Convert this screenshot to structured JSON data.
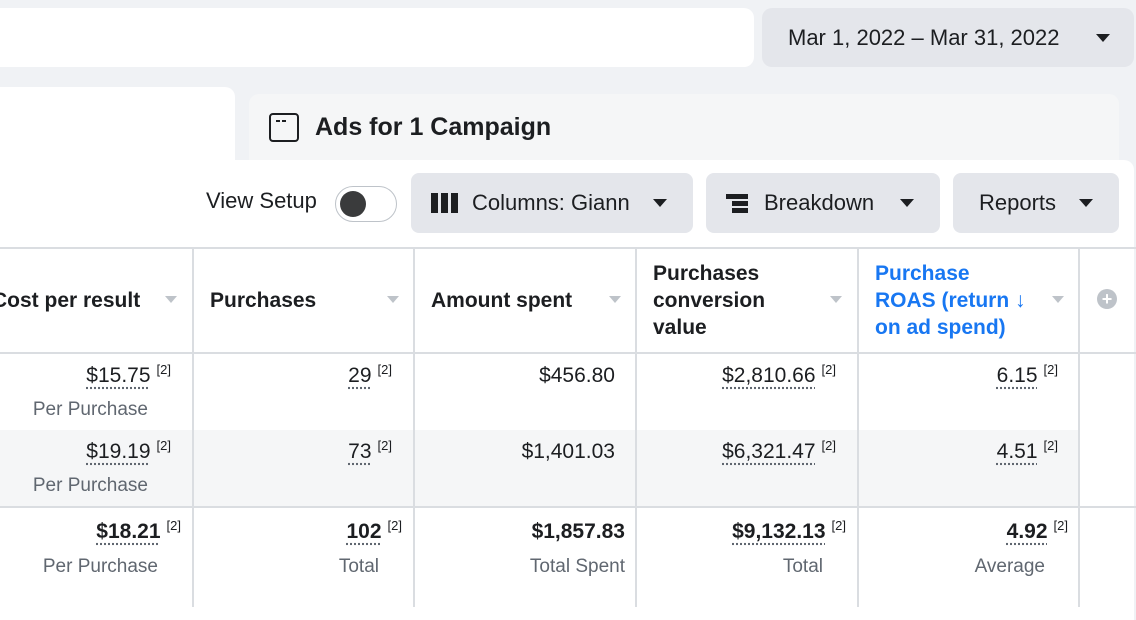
{
  "date_range": {
    "label": "Mar 1, 2022 – Mar 31, 2022"
  },
  "tab": {
    "title": "Ads for 1 Campaign"
  },
  "toolbar": {
    "view_setup": "View Setup",
    "columns": "Columns: Giann",
    "breakdown": "Breakdown",
    "reports": "Reports"
  },
  "table": {
    "headers": {
      "cost_per_result": "Cost per result",
      "purchases": "Purchases",
      "amount_spent": "Amount spent",
      "conversion_value_1": "Purchases",
      "conversion_value_2": "conversion",
      "conversion_value_3": "value",
      "roas_1": "Purchase",
      "roas_2": "ROAS (return ↓",
      "roas_3": "on ad spend)"
    },
    "rows": [
      {
        "cost_per_result": "$15.75",
        "cost_sub": "Per Purchase",
        "purchases": "29",
        "amount_spent": "$456.80",
        "conversion_value": "$2,810.66",
        "roas": "6.15"
      },
      {
        "cost_per_result": "$19.19",
        "cost_sub": "Per Purchase",
        "purchases": "73",
        "amount_spent": "$1,401.03",
        "conversion_value": "$6,321.47",
        "roas": "4.51"
      }
    ],
    "totals": {
      "cost_per_result": "$18.21",
      "cost_sub": "Per Purchase",
      "purchases": "102",
      "purchases_sub": "Total",
      "amount_spent": "$1,857.83",
      "amount_sub": "Total Spent",
      "conversion_value": "$9,132.13",
      "conversion_sub": "Total",
      "roas": "4.92",
      "roas_sub": "Average"
    },
    "footnote": "[2]",
    "add_column": "+"
  },
  "colors": {
    "accent": "#1877f2",
    "background": "#f0f2f5",
    "button": "#e4e6eb"
  }
}
